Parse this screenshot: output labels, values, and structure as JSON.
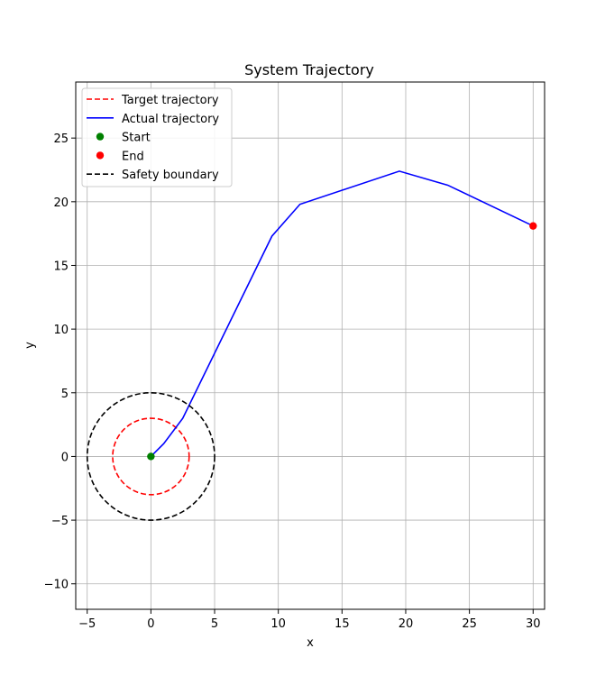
{
  "chart_data": {
    "type": "line",
    "title": "System Trajectory",
    "xlabel": "x",
    "ylabel": "y",
    "xlim": [
      -5.9,
      30.9
    ],
    "ylim": [
      -12,
      29.4
    ],
    "xticks": [
      -5,
      0,
      5,
      10,
      15,
      20,
      25,
      30
    ],
    "yticks": [
      -10,
      -5,
      0,
      5,
      10,
      15,
      20,
      25
    ],
    "grid": true,
    "legend_position": "upper-left",
    "series": [
      {
        "name": "Target trajectory",
        "kind": "circle",
        "center": [
          0,
          0
        ],
        "radius": 3,
        "color": "#ff0000",
        "style": "dashed"
      },
      {
        "name": "Actual trajectory",
        "kind": "line",
        "color": "#0000ff",
        "style": "solid",
        "x": [
          0,
          1,
          2.5,
          9.5,
          11.7,
          19.5,
          23.3,
          30
        ],
        "y": [
          0,
          1,
          3,
          17.3,
          19.8,
          22.4,
          21.3,
          18.1
        ]
      },
      {
        "name": "Start",
        "kind": "marker",
        "color": "#008000",
        "x": [
          0
        ],
        "y": [
          0
        ]
      },
      {
        "name": "End",
        "kind": "marker",
        "color": "#ff0000",
        "x": [
          30
        ],
        "y": [
          18.1
        ]
      },
      {
        "name": "Safety boundary",
        "kind": "circle",
        "center": [
          0,
          0
        ],
        "radius": 5,
        "color": "#000000",
        "style": "dashed"
      }
    ]
  }
}
